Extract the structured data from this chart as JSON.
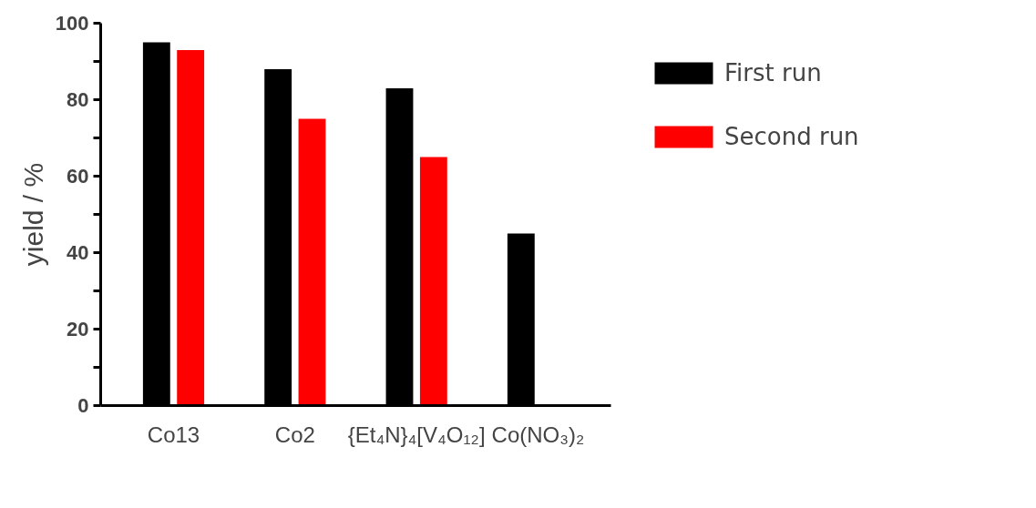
{
  "chart_data": {
    "type": "bar",
    "ylabel": "yield / %",
    "categories": [
      "Co13",
      "Co2",
      "{Et₄N}₄[V₄O₁₂]",
      "Co(NO₃)₂"
    ],
    "series": [
      {
        "name": "First run",
        "color": "#000000",
        "values": [
          95,
          88,
          83,
          45
        ]
      },
      {
        "name": "Second run",
        "color": "#ff0000",
        "values": [
          93,
          75,
          65,
          null
        ]
      }
    ],
    "ylim": [
      0,
      100
    ],
    "yticks": [
      0,
      {
        "value": 10,
        "label": null
      },
      20,
      {
        "value": 30,
        "label": null
      },
      40,
      {
        "value": 50,
        "label": null
      },
      60,
      {
        "value": 70,
        "label": null
      },
      80,
      {
        "value": 90,
        "label": null
      },
      100
    ],
    "grid": false,
    "legend": "right"
  }
}
